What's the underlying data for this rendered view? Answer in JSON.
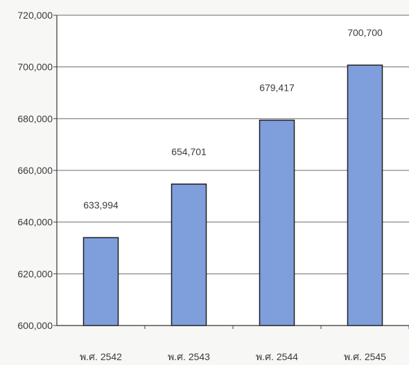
{
  "chart_data": {
    "type": "bar",
    "categories": [
      "พ.ศ. 2542",
      "พ.ศ. 2543",
      "พ.ศ. 2544",
      "พ.ศ. 2545"
    ],
    "values": [
      633994,
      654701,
      679417,
      700700
    ],
    "value_labels": [
      "633,994",
      "654,701",
      "679,417",
      "700,700"
    ],
    "ylim": [
      600000,
      720000
    ],
    "yticks": [
      600000,
      620000,
      640000,
      660000,
      680000,
      700000,
      720000
    ],
    "ytick_labels": [
      "600,000",
      "620,000",
      "640,000",
      "660,000",
      "680,000",
      "700,000",
      "720,000"
    ],
    "grid": true,
    "bar_color": "#7f9fdc",
    "bar_edge_color": "#1e1e1e"
  }
}
